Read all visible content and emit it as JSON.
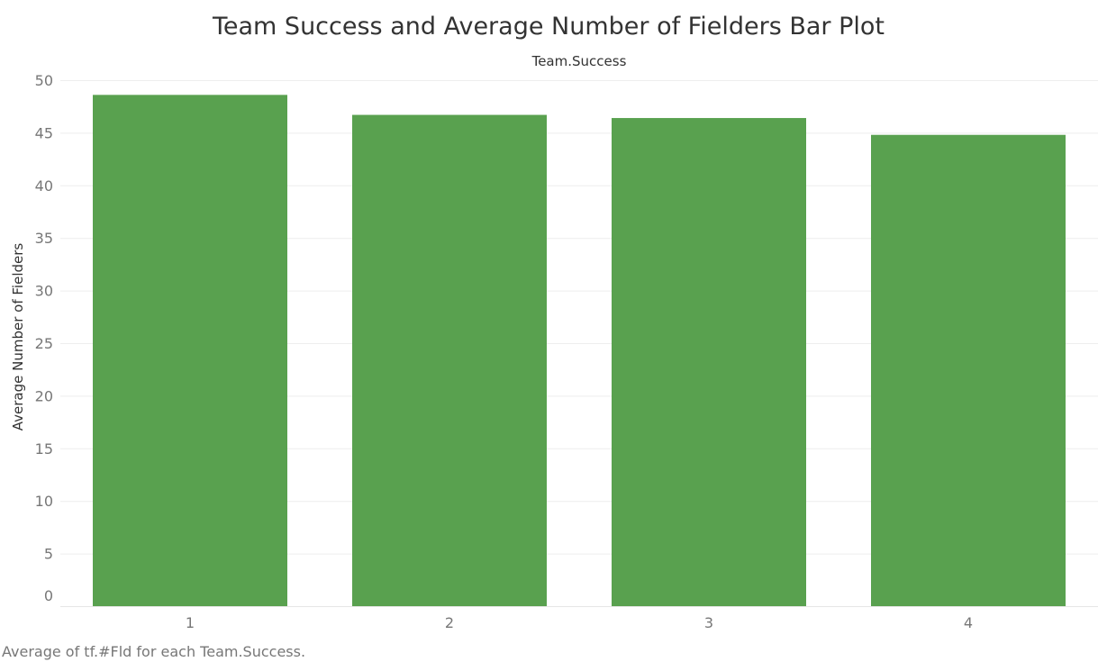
{
  "chart_data": {
    "type": "bar",
    "title": "Team Success and Average Number of Fielders Bar Plot",
    "column_header": "Team.Success",
    "xlabel": "",
    "ylabel": "Average Number of Fielders",
    "categories": [
      "1",
      "2",
      "3",
      "4"
    ],
    "values": [
      48.6,
      46.7,
      46.4,
      44.8
    ],
    "ylim": [
      0,
      50
    ],
    "yticks": [
      "0",
      "5",
      "10",
      "15",
      "20",
      "25",
      "30",
      "35",
      "40",
      "45",
      "50"
    ],
    "grid": true,
    "bar_color": "#59a14f",
    "caption": "Average of tf.#Fld for each Team.Success."
  }
}
